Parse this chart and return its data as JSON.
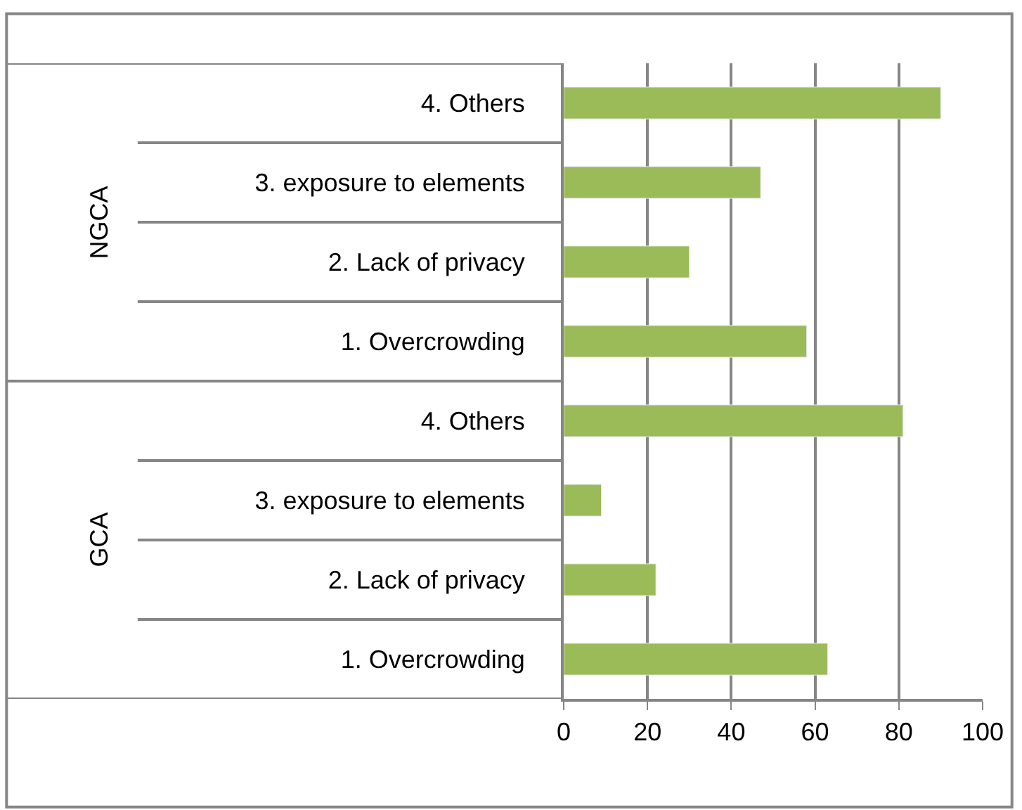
{
  "chart_data": {
    "type": "bar",
    "orientation": "horizontal",
    "categories": [
      "4. Others",
      "3. exposure to elements",
      "2. Lack of privacy",
      "1. Overcrowding",
      "4. Others",
      "3. exposure to elements",
      "2. Lack of privacy",
      "1. Overcrowding"
    ],
    "values": [
      90,
      47,
      30,
      58,
      81,
      9,
      22,
      63
    ],
    "color": "#9bbb59",
    "xlim": [
      0,
      100
    ],
    "xticks": [
      0,
      20,
      40,
      60,
      80,
      100
    ],
    "grid": "x",
    "legend": false,
    "annotations": [
      "NGCA",
      "GCA"
    ]
  }
}
